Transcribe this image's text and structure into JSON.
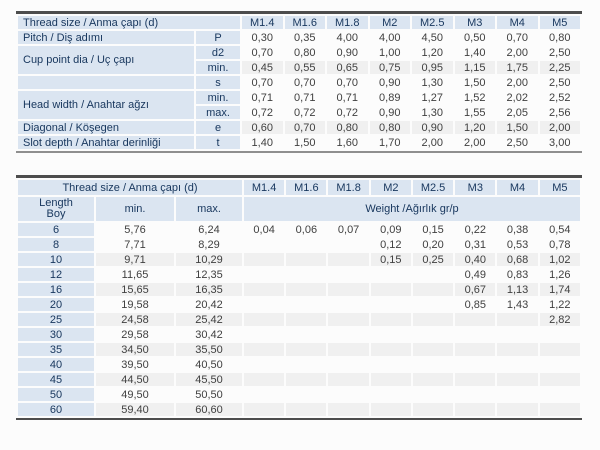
{
  "colors": {
    "header_bg": "#dbe5f1",
    "header_text": "#17365d",
    "value_text": "#404040",
    "shaded_row_bg": "#f0f0f0",
    "border_dark": "#4d4d4d",
    "border_light": "#8f8f8f",
    "page_bg": "#fcfcfc"
  },
  "top_table": {
    "header_label": "Thread size / Anma çapı (d)",
    "sizes": [
      "M1.4",
      "M1.6",
      "M1.8",
      "M2",
      "M2.5",
      "M3",
      "M4",
      "M5"
    ],
    "rows": [
      {
        "label": "Pitch / Diş adımı",
        "label_rowspan": 1,
        "sub": "P",
        "shaded": false,
        "values": [
          "0,30",
          "0,35",
          "4,00",
          "4,00",
          "4,50",
          "0,50",
          "0,70",
          "0,80"
        ]
      },
      {
        "label": "Cup point dia / Uç çapı",
        "label_rowspan": 2,
        "sub": "d2",
        "shaded": false,
        "values": [
          "0,70",
          "0,80",
          "0,90",
          "1,00",
          "1,20",
          "1,40",
          "2,00",
          "2,50"
        ]
      },
      {
        "label": null,
        "sub": "min.",
        "shaded": true,
        "values": [
          "0,45",
          "0,55",
          "0,65",
          "0,75",
          "0,95",
          "1,15",
          "1,75",
          "2,25"
        ]
      },
      {
        "label": "",
        "label_rowspan": 1,
        "sub": "s",
        "shaded": false,
        "values": [
          "0,70",
          "0,70",
          "0,70",
          "0,90",
          "1,30",
          "1,50",
          "2,00",
          "2,50"
        ]
      },
      {
        "label": "Head width / Anahtar ağzı",
        "label_rowspan": 2,
        "sub": "min.",
        "shaded": false,
        "values": [
          "0,71",
          "0,71",
          "0,71",
          "0,89",
          "1,27",
          "1,52",
          "2,02",
          "2,52"
        ]
      },
      {
        "label": null,
        "sub": "max.",
        "shaded": false,
        "values": [
          "0,72",
          "0,72",
          "0,72",
          "0,90",
          "1,30",
          "1,55",
          "2,05",
          "2,56"
        ]
      },
      {
        "label": "Diagonal / Köşegen",
        "label_rowspan": 1,
        "sub": "e",
        "shaded": true,
        "values": [
          "0,60",
          "0,70",
          "0,80",
          "0,80",
          "0,90",
          "1,20",
          "1,50",
          "2,00"
        ]
      },
      {
        "label": "Slot depth / Anahtar derinliği",
        "label_rowspan": 1,
        "sub": "t",
        "shaded": false,
        "values": [
          "1,40",
          "1,50",
          "1,60",
          "1,70",
          "2,00",
          "2,00",
          "2,50",
          "3,00"
        ]
      }
    ]
  },
  "bottom_table": {
    "header_label": "Thread size / Anma çapı (d)",
    "sizes": [
      "M1.4",
      "M1.6",
      "M1.8",
      "M2",
      "M2.5",
      "M3",
      "M4",
      "M5"
    ],
    "length_label": "Length",
    "boy_label": "Boy",
    "min_label": "min.",
    "max_label": "max.",
    "weight_label": "Weight /Ağırlık gr/p",
    "rows": [
      {
        "length": "6",
        "min": "5,76",
        "max": "6,24",
        "shaded": false,
        "weights": [
          "0,04",
          "0,06",
          "0,07",
          "0,09",
          "0,15",
          "0,22",
          "0,38",
          "0,54"
        ]
      },
      {
        "length": "8",
        "min": "7,71",
        "max": "8,29",
        "shaded": false,
        "weights": [
          "",
          "",
          "",
          "0,12",
          "0,20",
          "0,31",
          "0,53",
          "0,78"
        ]
      },
      {
        "length": "10",
        "min": "9,71",
        "max": "10,29",
        "shaded": true,
        "weights": [
          "",
          "",
          "",
          "0,15",
          "0,25",
          "0,40",
          "0,68",
          "1,02"
        ]
      },
      {
        "length": "12",
        "min": "11,65",
        "max": "12,35",
        "shaded": false,
        "weights": [
          "",
          "",
          "",
          "",
          "",
          "0,49",
          "0,83",
          "1,26"
        ]
      },
      {
        "length": "16",
        "min": "15,65",
        "max": "16,35",
        "shaded": true,
        "weights": [
          "",
          "",
          "",
          "",
          "",
          "0,67",
          "1,13",
          "1,74"
        ]
      },
      {
        "length": "20",
        "min": "19,58",
        "max": "20,42",
        "shaded": false,
        "weights": [
          "",
          "",
          "",
          "",
          "",
          "0,85",
          "1,43",
          "1,22"
        ]
      },
      {
        "length": "25",
        "min": "24,58",
        "max": "25,42",
        "shaded": true,
        "weights": [
          "",
          "",
          "",
          "",
          "",
          "",
          "",
          "2,82"
        ]
      },
      {
        "length": "30",
        "min": "29,58",
        "max": "30,42",
        "shaded": false,
        "weights": [
          "",
          "",
          "",
          "",
          "",
          "",
          "",
          ""
        ]
      },
      {
        "length": "35",
        "min": "34,50",
        "max": "35,50",
        "shaded": true,
        "weights": [
          "",
          "",
          "",
          "",
          "",
          "",
          "",
          ""
        ]
      },
      {
        "length": "40",
        "min": "39,50",
        "max": "40,50",
        "shaded": false,
        "weights": [
          "",
          "",
          "",
          "",
          "",
          "",
          "",
          ""
        ]
      },
      {
        "length": "45",
        "min": "44,50",
        "max": "45,50",
        "shaded": true,
        "weights": [
          "",
          "",
          "",
          "",
          "",
          "",
          "",
          ""
        ]
      },
      {
        "length": "50",
        "min": "49,50",
        "max": "50,50",
        "shaded": false,
        "weights": [
          "",
          "",
          "",
          "",
          "",
          "",
          "",
          ""
        ]
      },
      {
        "length": "60",
        "min": "59,40",
        "max": "60,60",
        "shaded": true,
        "weights": [
          "",
          "",
          "",
          "",
          "",
          "",
          "",
          ""
        ]
      }
    ]
  }
}
